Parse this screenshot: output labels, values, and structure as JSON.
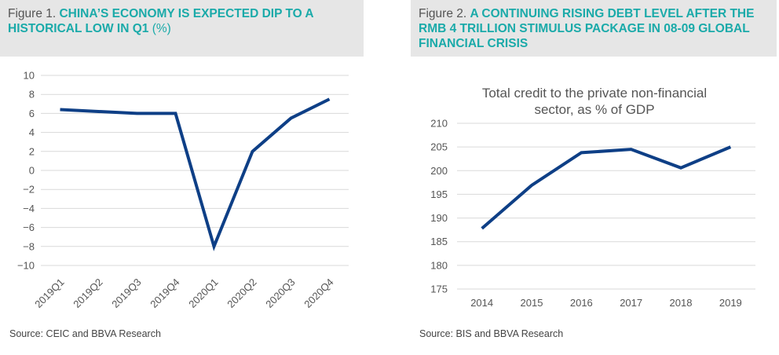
{
  "figure1": {
    "prefix": "Figure 1.",
    "title": "CHINA’S ECONOMY IS EXPECTED DIP TO A HISTORICAL LOW IN Q1",
    "unit": "(%)",
    "source": "Source: CEIC and BBVA Research"
  },
  "figure2": {
    "prefix": "Figure 2.",
    "title": "A CONTINUING RISING DEBT LEVEL AFTER THE RMB 4 TRILLION STIMULUS PACKAGE IN 08-09 GLOBAL FINANCIAL CRISIS",
    "source": "Source: BIS and BBVA Research"
  },
  "colors": {
    "line": "#0e3f86",
    "accent": "#1aaaa9",
    "grid": "#d9d9d9",
    "header_bg": "#e6e6e6"
  },
  "chart_data": [
    {
      "type": "line",
      "title": "",
      "categories": [
        "2019Q1",
        "2019Q2",
        "2019Q3",
        "2019Q4",
        "2020Q1",
        "2020Q2",
        "2020Q3",
        "2020Q4"
      ],
      "values": [
        6.4,
        6.2,
        6.0,
        6.0,
        -8.0,
        2.0,
        5.5,
        7.5
      ],
      "yticks": [
        "10",
        "8",
        "6",
        "4",
        "2",
        "0",
        "-2",
        "-4",
        "-6",
        "-8",
        "-10"
      ],
      "ylim": [
        -10,
        10
      ],
      "grid": true,
      "legend": "none"
    },
    {
      "type": "line",
      "title": [
        "Total credit to the private non-financial",
        "sector, as % of GDP"
      ],
      "categories": [
        "2014",
        "2015",
        "2016",
        "2017",
        "2018",
        "2019"
      ],
      "values": [
        187.8,
        196.9,
        203.8,
        204.5,
        200.6,
        205.0
      ],
      "yticks": [
        "210",
        "205",
        "200",
        "195",
        "190",
        "185",
        "180",
        "175"
      ],
      "ylim": [
        175,
        210
      ],
      "grid": true,
      "legend": "none"
    }
  ]
}
